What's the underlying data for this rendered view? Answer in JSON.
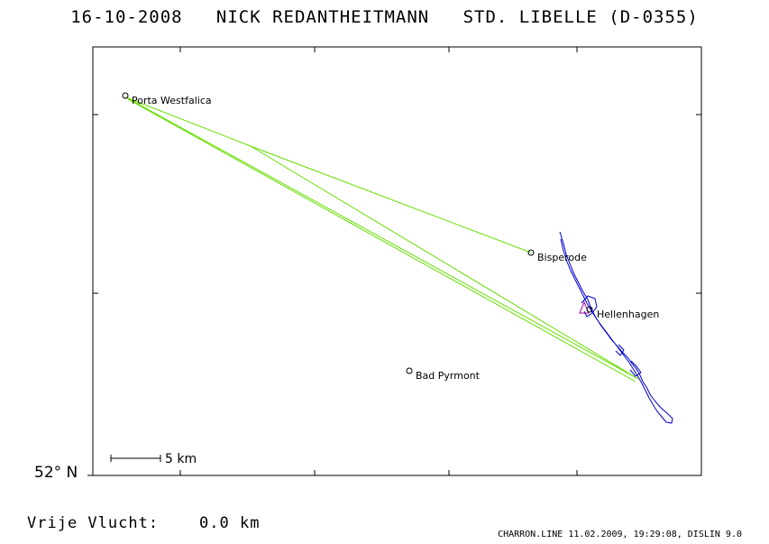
{
  "header": {
    "date": "16-10-2008",
    "pilot": "NICK REDANTHEITMANN",
    "glider": "STD. LIBELLE (D-0355)"
  },
  "map": {
    "latitude_label": "52° N",
    "scale_label": "5 km",
    "places": [
      {
        "name": "Porta Westfalica"
      },
      {
        "name": "Bisperode"
      },
      {
        "name": "Hellenhagen"
      },
      {
        "name": "Bad Pyrmont"
      }
    ],
    "colors": {
      "task_line": "#66dd00",
      "flight_track": "#0000cc",
      "start_marker": "#aa00aa",
      "frame": "#000000"
    }
  },
  "footer": {
    "free_flight_label": "Vrije Vlucht:",
    "free_flight_value": "0.0 km",
    "credits": "CHARRON.LINE 11.02.2009, 19:29:08, DISLIN 9.0"
  }
}
